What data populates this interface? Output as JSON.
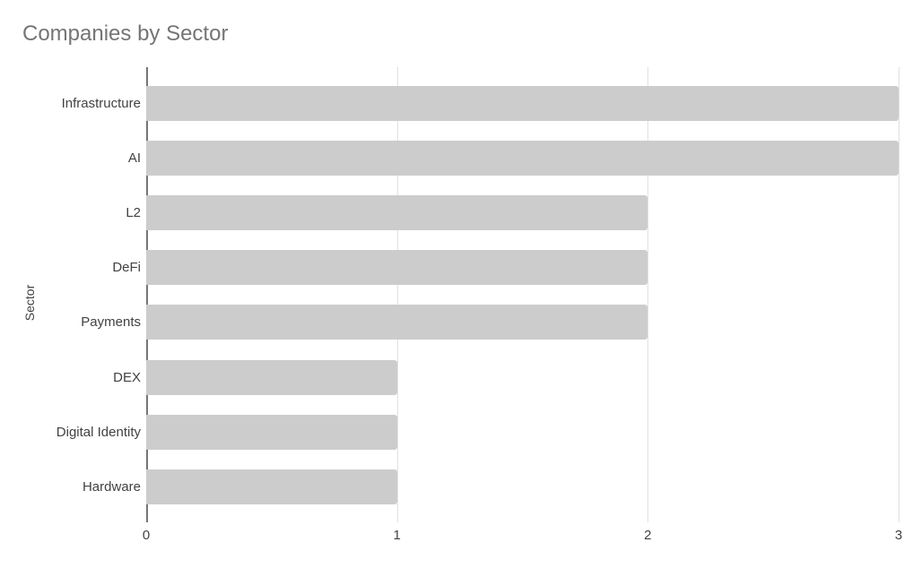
{
  "page": {
    "background": "#ffffff"
  },
  "chart": {
    "title_color": "#757575",
    "label_color": "#424242",
    "bar_color": "#cccccc",
    "axis_line_color": "#757575",
    "gridline_color": "#e0e0e0"
  },
  "chart_data": {
    "type": "bar",
    "orientation": "horizontal",
    "title": "Companies by Sector",
    "xlabel": "",
    "ylabel": "Sector",
    "categories": [
      "Infrastructure",
      "AI",
      "L2",
      "DeFi",
      "Payments",
      "DEX",
      "Digital Identity",
      "Hardware"
    ],
    "values": [
      3,
      3,
      2,
      2,
      2,
      1,
      1,
      1
    ],
    "xlim": [
      0,
      3
    ],
    "xticks": [
      0,
      1,
      2,
      3
    ],
    "grid": true,
    "legend": "none"
  }
}
